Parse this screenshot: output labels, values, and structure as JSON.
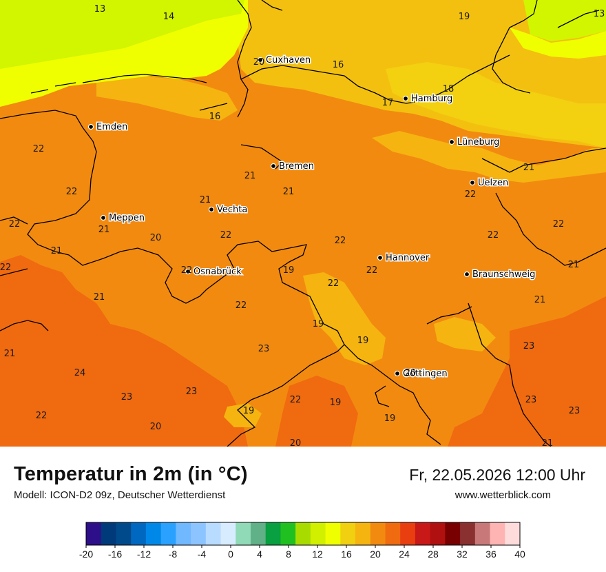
{
  "title": "Temperatur in 2m (in °C)",
  "subtitle": "Modell: ICON-D2 09z, Deutscher Wetterdienst",
  "datetime": "Fr, 22.05.2026 12:00 Uhr",
  "website": "www.wetterblick.com",
  "colors": {
    "base_21_22": "#f28a10",
    "warm_23_24": "#f06a10",
    "mid_19_20": "#f5b410",
    "cool_17_18": "#f3d010",
    "yellow_16": "#f0ff00",
    "lime_14": "#d2f500",
    "border_line": "#000000"
  },
  "cities": [
    {
      "name": "Cuxhaven"
    },
    {
      "name": "Hamburg"
    },
    {
      "name": "Emden"
    },
    {
      "name": "Lüneburg"
    },
    {
      "name": "Bremen"
    },
    {
      "name": "Uelzen"
    },
    {
      "name": "Vechta"
    },
    {
      "name": "Meppen"
    },
    {
      "name": "Hannover"
    },
    {
      "name": "Osnabrück"
    },
    {
      "name": "Braunschweig"
    },
    {
      "name": "Göttingen"
    }
  ],
  "temperature_labels": [
    "13",
    "14",
    "19",
    "13",
    "20",
    "16",
    "18",
    "17",
    "16",
    "22",
    "21",
    "22",
    "21",
    "21",
    "21",
    "22",
    "21",
    "22",
    "20",
    "22",
    "22",
    "21",
    "22",
    "22",
    "22",
    "21",
    "22",
    "19",
    "22",
    "22",
    "21",
    "21",
    "22",
    "19",
    "19",
    "23",
    "23",
    "21",
    "24",
    "20",
    "23",
    "23",
    "22",
    "19",
    "19",
    "23",
    "19",
    "22",
    "20",
    "23",
    "20",
    "21"
  ],
  "colorbar": {
    "colors": [
      "#2e0f8a",
      "#003a7a",
      "#004a8c",
      "#0068c0",
      "#0088e8",
      "#2aa0ff",
      "#70b8ff",
      "#8cc4ff",
      "#b8dcff",
      "#d8ecff",
      "#90dab8",
      "#60b088",
      "#08a040",
      "#20c020",
      "#a8dc00",
      "#d0f000",
      "#f0ff00",
      "#f0d010",
      "#f5b410",
      "#f28a10",
      "#f06a10",
      "#e83e10",
      "#c81818",
      "#b01010",
      "#780000",
      "#8a3030",
      "#c87878",
      "#ffb4b4",
      "#ffdcdc"
    ],
    "ticks": [
      "-20",
      "-16",
      "-12",
      "-8",
      "-4",
      "0",
      "4",
      "8",
      "12",
      "16",
      "20",
      "24",
      "28",
      "32",
      "36",
      "40"
    ]
  }
}
